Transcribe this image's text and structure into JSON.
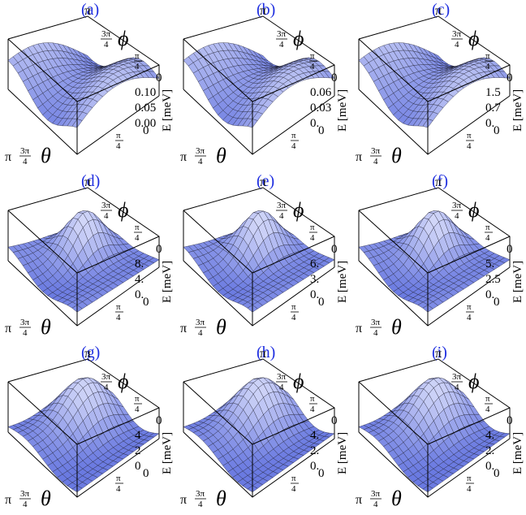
{
  "panels": [
    {
      "label": "(a)",
      "z_ticks": [
        "0.10",
        "0.05",
        "0.00"
      ],
      "shape": "ridge"
    },
    {
      "label": "(b)",
      "z_ticks": [
        "0.06",
        "0.03",
        "0."
      ],
      "shape": "ridge"
    },
    {
      "label": "(c)",
      "z_ticks": [
        "1.5",
        "0.7",
        "0."
      ],
      "shape": "ridge"
    },
    {
      "label": "(d)",
      "z_ticks": [
        "8.",
        "4.",
        "0."
      ],
      "shape": "peak"
    },
    {
      "label": "(e)",
      "z_ticks": [
        "6.",
        "3.",
        "0."
      ],
      "shape": "peak"
    },
    {
      "label": "(f)",
      "z_ticks": [
        "5.",
        "2.5",
        "0."
      ],
      "shape": "peak"
    },
    {
      "label": "(g)",
      "z_ticks": [
        "4",
        "2",
        "0"
      ],
      "shape": "hump"
    },
    {
      "label": "(h)",
      "z_ticks": [
        "4.",
        "2.",
        "0."
      ],
      "shape": "hump"
    },
    {
      "label": "(i)",
      "z_ticks": [
        "4.",
        "2.",
        "0."
      ],
      "shape": "hump"
    }
  ],
  "axes": {
    "phi_symbol": "ϕ",
    "theta_symbol": "θ",
    "energy_label": "E [meV]",
    "tick_pi": "π",
    "tick_3pi_num": "3π",
    "tick_3pi_den": "4",
    "tick_pi4_num": "π",
    "tick_pi4_den": "4",
    "tick_zero": "0"
  },
  "colors": {
    "label": "#1f2fe0",
    "surface_dark": "#3a4fd6",
    "surface_light": "#eef0ff"
  }
}
